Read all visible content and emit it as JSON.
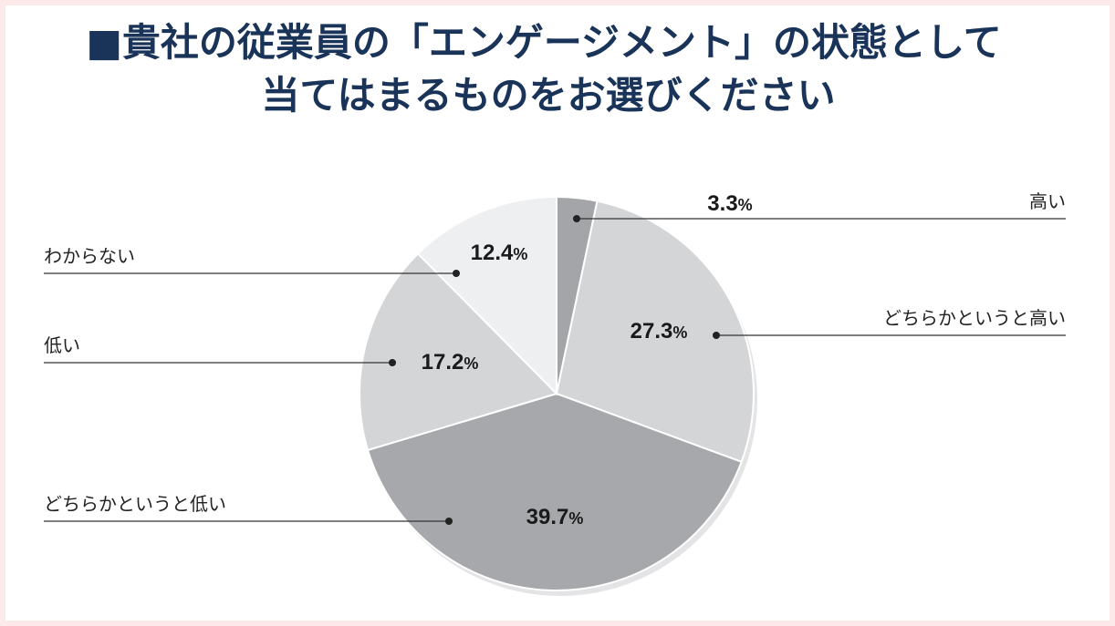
{
  "title": {
    "marker": "■",
    "line1": "貴社の従業員の「エンゲージメント」の状態として",
    "line2": "当てはまるものをお選びください"
  },
  "chart_data": {
    "type": "pie",
    "unit": "%",
    "slices": [
      {
        "label": "高い",
        "value": 3.3,
        "color": "#a3a5a8",
        "side": "right"
      },
      {
        "label": "どちらかというと高い",
        "value": 27.3,
        "color": "#d4d5d7",
        "side": "right"
      },
      {
        "label": "どちらかというと低い",
        "value": 39.7,
        "color": "#a6a8ab",
        "side": "left"
      },
      {
        "label": "低い",
        "value": 17.2,
        "color": "#d4d5d7",
        "side": "left"
      },
      {
        "label": "わからない",
        "value": 12.4,
        "color": "#eeeff1",
        "side": "left"
      }
    ]
  }
}
